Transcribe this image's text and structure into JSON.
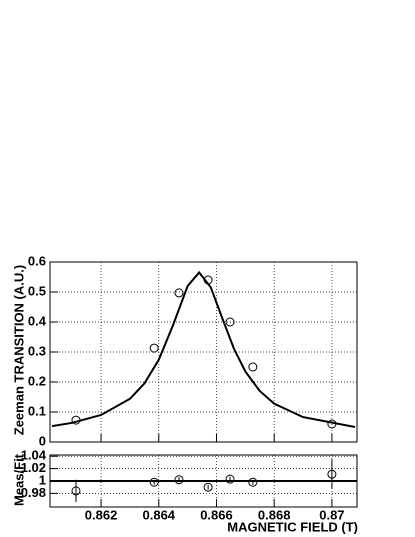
{
  "chart_data": [
    {
      "type": "scatter",
      "ylabel": "Zeeman TRANSITION (A.U.)",
      "x": [
        0.86113,
        0.86384,
        0.8647,
        0.86571,
        0.86647,
        0.86726,
        0.87
      ],
      "values": [
        0.073,
        0.313,
        0.497,
        0.54,
        0.4,
        0.25,
        0.06
      ],
      "fit": {
        "x": [
          0.8603,
          0.861,
          0.862,
          0.863,
          0.8635,
          0.864,
          0.8645,
          0.865,
          0.8654,
          0.8658,
          0.8662,
          0.8666,
          0.867,
          0.8675,
          0.868,
          0.869,
          0.8708
        ],
        "values": [
          0.053,
          0.064,
          0.09,
          0.144,
          0.195,
          0.274,
          0.391,
          0.52,
          0.565,
          0.516,
          0.413,
          0.312,
          0.235,
          0.17,
          0.128,
          0.083,
          0.05
        ]
      },
      "color": "#000000",
      "xlim": [
        0.86023,
        0.87087
      ],
      "ylim": [
        0,
        0.6
      ],
      "xticks": [
        0.862,
        0.864,
        0.866,
        0.868,
        0.87
      ],
      "yticks": [
        0,
        0.1,
        0.2,
        0.3,
        0.4,
        0.5,
        0.6
      ],
      "grid": true
    },
    {
      "type": "scatter",
      "ylabel": "Meas/Fit",
      "xlabel": "MAGNETIC FIELD (T)",
      "x": [
        0.86113,
        0.86384,
        0.8647,
        0.86571,
        0.86647,
        0.86726,
        0.87
      ],
      "values": [
        0.984,
        0.998,
        1.002,
        0.99,
        1.003,
        0.998,
        1.011
      ],
      "errors": [
        0.018,
        0.004,
        0.004,
        0.004,
        0.004,
        0.004,
        0.024
      ],
      "reference": 1,
      "color": "#000000",
      "xlim": [
        0.86023,
        0.87087
      ],
      "ylim": [
        0.958,
        1.042
      ],
      "xticks": [
        0.862,
        0.864,
        0.866,
        0.868,
        0.87
      ],
      "yticks": [
        0.98,
        1,
        1.02,
        1.04
      ],
      "grid": true
    }
  ]
}
